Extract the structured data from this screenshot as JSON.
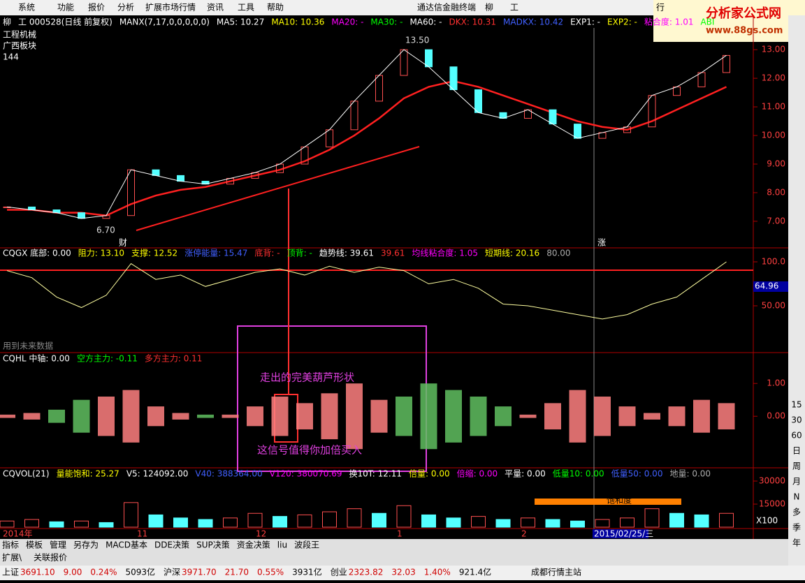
{
  "menu": {
    "items": [
      "系统",
      "功能",
      "报价",
      "分析",
      "扩展市场行情",
      "资讯",
      "工具",
      "帮助"
    ],
    "center": "通达信金融终端",
    "stock": "柳",
    "stock2": "工",
    "right": "行"
  },
  "logo": {
    "title": "分析家公式网",
    "url": "www.88gs.com"
  },
  "price_panel": {
    "header": [
      {
        "text": "柳",
        "color": "#ffffff"
      },
      {
        "text": "工 000528(日线 前复权)",
        "color": "#ffffff"
      },
      {
        "text": "MANX(7,17,0,0,0,0,0)",
        "color": "#ffffff"
      },
      {
        "text": "MA5: 10.27",
        "color": "#ffffff"
      },
      {
        "text": "MA10: 10.36",
        "color": "#ffff00"
      },
      {
        "text": "MA20: -",
        "color": "#ff00ff"
      },
      {
        "text": "MA30: -",
        "color": "#00ff00"
      },
      {
        "text": "MA60: -",
        "color": "#ffffff"
      },
      {
        "text": "DKX: 10.31",
        "color": "#ff3030"
      },
      {
        "text": "MADKX: 10.42",
        "color": "#4060ff"
      },
      {
        "text": "EXP1: -",
        "color": "#ffffff"
      },
      {
        "text": "EXP2: -",
        "color": "#ffff00"
      },
      {
        "text": "粘合度: 1.01",
        "color": "#ff00ff"
      },
      {
        "text": "ABI",
        "color": "#00ff00"
      }
    ],
    "info": [
      "工程机械",
      "广西板块",
      "144"
    ],
    "annotations": [
      "13.50",
      "6.70",
      "财",
      "涨"
    ],
    "ylim": [
      6.07,
      14.2
    ],
    "yticks": [
      {
        "value": 7,
        "label": "7.00"
      },
      {
        "value": 8,
        "label": "8.00"
      },
      {
        "value": 9,
        "label": "9.00"
      },
      {
        "value": 10,
        "label": "10.00"
      },
      {
        "value": 11,
        "label": "11.00"
      },
      {
        "value": 12,
        "label": "12.00"
      },
      {
        "value": 13,
        "label": "13.00"
      }
    ],
    "closes": [
      7.5,
      7.4,
      7.3,
      7.1,
      7.2,
      8.8,
      8.6,
      8.4,
      8.3,
      8.5,
      8.7,
      9.0,
      9.6,
      10.2,
      11.2,
      12.1,
      13.0,
      12.4,
      11.6,
      10.8,
      10.6,
      10.9,
      10.4,
      9.9,
      10.1,
      10.3,
      11.4,
      11.7,
      12.2,
      12.8
    ],
    "ma": [
      7.4,
      7.4,
      7.3,
      7.3,
      7.2,
      7.6,
      7.9,
      8.1,
      8.2,
      8.4,
      8.6,
      8.8,
      9.1,
      9.5,
      10.0,
      10.6,
      11.3,
      11.7,
      11.9,
      11.7,
      11.4,
      11.1,
      10.8,
      10.5,
      10.3,
      10.2,
      10.5,
      10.9,
      11.3,
      11.7
    ]
  },
  "osc_panel": {
    "header": [
      {
        "text": "CQGX 底部: 0.00",
        "color": "#ffffff"
      },
      {
        "text": "阻力: 13.10",
        "color": "#ffff00"
      },
      {
        "text": "支撑: 12.52",
        "color": "#ffff00"
      },
      {
        "text": "涨停能量: 15.47",
        "color": "#4060ff"
      },
      {
        "text": "底背: -",
        "color": "#ff3030"
      },
      {
        "text": "顶背: -",
        "color": "#00ff00"
      },
      {
        "text": "趋势线: 39.61",
        "color": "#ffffff"
      },
      {
        "text": "39.61",
        "color": "#ff3030"
      },
      {
        "text": "均线粘合度: 1.05",
        "color": "#ff00ff"
      },
      {
        "text": "短期线: 20.16",
        "color": "#ffff00"
      },
      {
        "text": "80.00",
        "color": "#aaaaaa"
      }
    ],
    "note": "用到未来数据",
    "current": "64.96",
    "ylim": [
      -3.2,
      115.9
    ],
    "yticks": [
      {
        "value": 50,
        "label": "50.00"
      },
      {
        "value": 100,
        "label": "100.0"
      }
    ],
    "values": [
      90,
      82,
      60,
      48,
      62,
      98,
      80,
      85,
      72,
      80,
      88,
      92,
      85,
      95,
      88,
      94,
      90,
      75,
      80,
      70,
      52,
      50,
      45,
      40,
      35,
      40,
      52,
      60,
      80,
      100
    ]
  },
  "hl_panel": {
    "header": [
      {
        "text": "CQHL 中轴: 0.00",
        "color": "#ffffff"
      },
      {
        "text": "空方主力: -0.11",
        "color": "#00ff00"
      },
      {
        "text": "多方主力: 0.11",
        "color": "#ff3030"
      }
    ],
    "annotations": [
      "走出的完美葫芦形状",
      "这信号值得你加倍买入"
    ],
    "ylim": [
      -1.57,
      1.94
    ],
    "yticks": [
      {
        "value": 0,
        "label": "0.00"
      },
      {
        "value": 1,
        "label": "1.00"
      }
    ],
    "values": [
      0.05,
      0.1,
      -0.2,
      -0.5,
      0.6,
      0.8,
      0.3,
      0.1,
      -0.05,
      0.05,
      0.3,
      0.6,
      0.4,
      0.7,
      1.0,
      0.5,
      -0.6,
      -1.0,
      -0.8,
      -0.6,
      -0.3,
      0.05,
      0.4,
      0.8,
      0.6,
      0.3,
      0.1,
      0.3,
      0.5,
      0.4
    ]
  },
  "vol_panel": {
    "header": [
      {
        "text": "CQVOL(21)",
        "color": "#ffffff"
      },
      {
        "text": "量能饱和: 25.27",
        "color": "#ffff00"
      },
      {
        "text": "V5: 124092.00",
        "color": "#ffffff"
      },
      {
        "text": "V40: 388364.00",
        "color": "#4060ff"
      },
      {
        "text": "V120: 380070.69",
        "color": "#ff00ff"
      },
      {
        "text": "换10T: 12.11",
        "color": "#ffffff"
      },
      {
        "text": "倍量: 0.00",
        "color": "#ffff00"
      },
      {
        "text": "倍缩: 0.00",
        "color": "#ff00ff"
      },
      {
        "text": "平量: 0.00",
        "color": "#ffffff"
      },
      {
        "text": "低量10: 0.00",
        "color": "#00ff00"
      },
      {
        "text": "低量50: 0.00",
        "color": "#4060ff"
      },
      {
        "text": "地量: 0.00",
        "color": "#aaaaaa"
      }
    ],
    "band": "饱和度",
    "unit": "X100",
    "ylim": [
      -900,
      38640
    ],
    "yticks": [
      15000,
      30000
    ],
    "values": [
      4000,
      5000,
      3500,
      4000,
      3000,
      16000,
      8000,
      6000,
      5000,
      6000,
      9000,
      7000,
      8000,
      10000,
      12000,
      9000,
      14000,
      8000,
      6000,
      7000,
      5000,
      6000,
      5000,
      4000,
      5000,
      6000,
      12000,
      9000,
      8000,
      9000
    ]
  },
  "date_axis": {
    "labels": [
      "2014年",
      "11",
      "12",
      "1",
      "2"
    ],
    "cursor": "2015/02/25/三",
    "period": "日线"
  },
  "tabs": [
    "指标",
    "模板",
    "管理",
    "另存为",
    "MACD基本",
    "DDE决策",
    "SUP决策",
    "资金决策",
    "liu",
    "波段王"
  ],
  "sub_tabs": [
    "扩展\\",
    "关联报价"
  ],
  "toolbar": [
    "15",
    "30",
    "60",
    "日",
    "周",
    "月",
    "N",
    "多",
    "季",
    "年"
  ],
  "status": {
    "items": [
      {
        "text": "上证",
        "color": "#000000"
      },
      {
        "text": "3691.10",
        "color": "#d00000"
      },
      {
        "text": "9.00",
        "color": "#d00000"
      },
      {
        "text": "0.24%",
        "color": "#d00000"
      },
      {
        "text": "5093亿",
        "color": "#000000"
      },
      {
        "text": "沪深",
        "color": "#000000"
      },
      {
        "text": "3971.70",
        "color": "#d00000"
      },
      {
        "text": "21.70",
        "color": "#d00000"
      },
      {
        "text": "0.55%",
        "color": "#d00000"
      },
      {
        "text": "3931亿",
        "color": "#000000"
      },
      {
        "text": "创业",
        "color": "#000000"
      },
      {
        "text": "2323.82",
        "color": "#d00000"
      },
      {
        "text": "32.03",
        "color": "#d00000"
      },
      {
        "text": "1.40%",
        "color": "#d00000"
      },
      {
        "text": "921.4亿",
        "color": "#000000"
      }
    ],
    "server": "成都行情主站"
  }
}
